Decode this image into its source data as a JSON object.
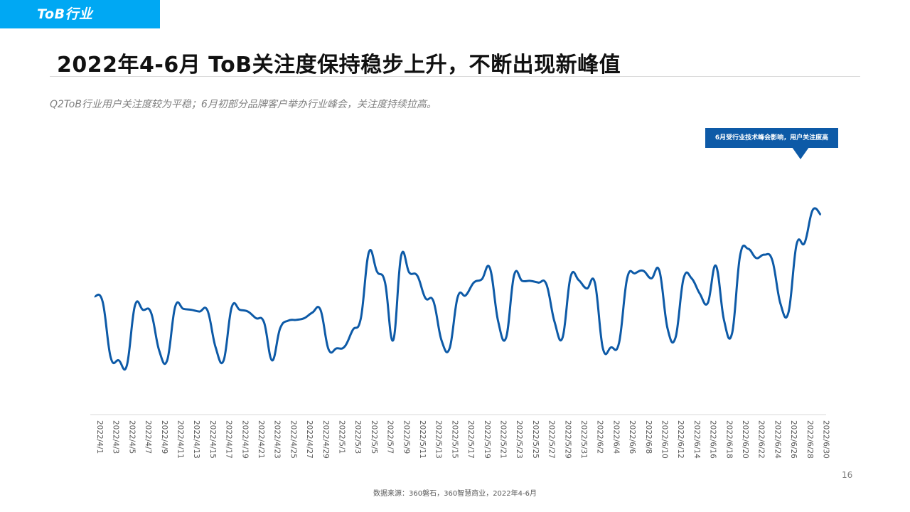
{
  "header": {
    "tag": "ToB行业",
    "title": "2022年4-6月 ToB关注度保持稳步上升，不断出现新峰值",
    "subtitle": "Q2ToB行业用户关注度较为平稳；6月初部分品牌客户举办行业峰会，关注度持续拉高。"
  },
  "annotation": "6月受行业技术峰会影响，用户关注度高",
  "footer": {
    "page_number": "16",
    "source": "数据来源：360磐石，360智慧商业，2022年4-6月"
  },
  "colors": {
    "tag": "#00a8f3",
    "line": "#0d5aa7",
    "callout": "#0d5aa7"
  },
  "chart_data": {
    "type": "line",
    "ylim": [
      0,
      100
    ],
    "grid": false,
    "x": [
      "2022/4/1",
      "2022/4/2",
      "2022/4/3",
      "2022/4/4",
      "2022/4/5",
      "2022/4/6",
      "2022/4/7",
      "2022/4/8",
      "2022/4/9",
      "2022/4/10",
      "2022/4/11",
      "2022/4/12",
      "2022/4/13",
      "2022/4/14",
      "2022/4/15",
      "2022/4/16",
      "2022/4/17",
      "2022/4/18",
      "2022/4/19",
      "2022/4/20",
      "2022/4/21",
      "2022/4/22",
      "2022/4/23",
      "2022/4/24",
      "2022/4/25",
      "2022/4/26",
      "2022/4/27",
      "2022/4/28",
      "2022/4/29",
      "2022/4/30",
      "2022/5/1",
      "2022/5/2",
      "2022/5/3",
      "2022/5/4",
      "2022/5/5",
      "2022/5/6",
      "2022/5/7",
      "2022/5/8",
      "2022/5/9",
      "2022/5/10",
      "2022/5/11",
      "2022/5/12",
      "2022/5/13",
      "2022/5/14",
      "2022/5/15",
      "2022/5/16",
      "2022/5/17",
      "2022/5/18",
      "2022/5/19",
      "2022/5/20",
      "2022/5/21",
      "2022/5/22",
      "2022/5/23",
      "2022/5/24",
      "2022/5/25",
      "2022/5/26",
      "2022/5/27",
      "2022/5/28",
      "2022/5/29",
      "2022/5/30",
      "2022/5/31",
      "2022/6/1",
      "2022/6/2",
      "2022/6/3",
      "2022/6/4",
      "2022/6/5",
      "2022/6/6",
      "2022/6/7",
      "2022/6/8",
      "2022/6/9",
      "2022/6/10",
      "2022/6/11",
      "2022/6/12",
      "2022/6/13",
      "2022/6/14",
      "2022/6/15",
      "2022/6/16",
      "2022/6/17",
      "2022/6/18",
      "2022/6/19",
      "2022/6/20",
      "2022/6/21",
      "2022/6/22",
      "2022/6/23",
      "2022/6/24",
      "2022/6/25",
      "2022/6/26",
      "2022/6/27",
      "2022/6/28",
      "2022/6/29",
      "2022/6/30"
    ],
    "tick_labels": [
      "2022/4/1",
      "2022/4/3",
      "2022/4/5",
      "2022/4/7",
      "2022/4/9",
      "2022/4/11",
      "2022/4/13",
      "2022/4/15",
      "2022/4/17",
      "2022/4/19",
      "2022/4/21",
      "2022/4/23",
      "2022/4/25",
      "2022/4/27",
      "2022/4/29",
      "2022/5/1",
      "2022/5/3",
      "2022/5/5",
      "2022/5/7",
      "2022/5/9",
      "2022/5/11",
      "2022/5/13",
      "2022/5/15",
      "2022/5/17",
      "2022/5/19",
      "2022/5/21",
      "2022/5/23",
      "2022/5/25",
      "2022/5/27",
      "2022/5/29",
      "2022/5/31",
      "2022/6/2",
      "2022/6/4",
      "2022/6/6",
      "2022/6/8",
      "2022/6/10",
      "2022/6/12",
      "2022/6/14",
      "2022/6/16",
      "2022/6/18",
      "2022/6/20",
      "2022/6/22",
      "2022/6/24",
      "2022/6/26",
      "2022/6/28",
      "2022/6/30"
    ],
    "series": [
      {
        "values": [
          48.2,
          46.1,
          23.3,
          22.1,
          20.0,
          44.4,
          42.7,
          41.6,
          26.2,
          22.1,
          44.1,
          43.1,
          42.7,
          42.0,
          42.4,
          27.4,
          22.1,
          43.8,
          42.7,
          42.0,
          39.3,
          37.6,
          22.1,
          35.2,
          38.3,
          38.6,
          39.3,
          41.6,
          42.7,
          26.6,
          27.0,
          27.7,
          34.5,
          39.3,
          66.2,
          58.3,
          53.8,
          30.3,
          64.8,
          57.9,
          56.6,
          47.5,
          46.2,
          30.3,
          27.0,
          47.9,
          48.6,
          53.8,
          55.2,
          59.7,
          38.3,
          31.4,
          56.9,
          54.5,
          54.5,
          53.8,
          53.1,
          37.9,
          31.4,
          56.2,
          54.8,
          51.4,
          53.8,
          27.0,
          27.4,
          29.3,
          55.5,
          57.6,
          58.6,
          55.5,
          58.6,
          35.2,
          31.4,
          55.5,
          55.5,
          49.3,
          45.5,
          60.7,
          38.6,
          33.1,
          64.8,
          67.6,
          63.8,
          65.2,
          62.8,
          45.2,
          41.7,
          69.3,
          70.0,
          83.4,
          81.4
        ]
      }
    ]
  }
}
